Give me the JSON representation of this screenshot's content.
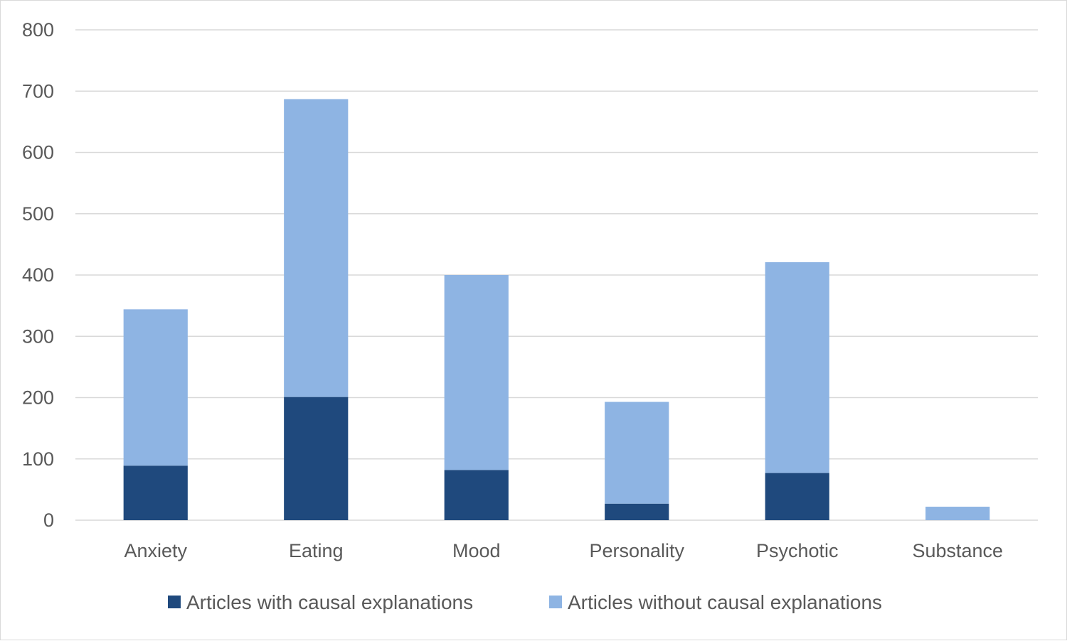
{
  "chart_data": {
    "type": "bar",
    "stacked": true,
    "title": "",
    "xlabel": "",
    "ylabel": "",
    "ylim": [
      0,
      800
    ],
    "yticks": [
      0,
      100,
      200,
      300,
      400,
      500,
      600,
      700,
      800
    ],
    "grid": true,
    "legend_position": "bottom",
    "categories": [
      "Anxiety",
      "Eating",
      "Mood",
      "Personality",
      "Psychotic",
      "Substance"
    ],
    "series": [
      {
        "name": "Articles with causal explanations",
        "color": "#1f497d",
        "values": [
          89,
          201,
          82,
          27,
          77,
          0
        ]
      },
      {
        "name": "Articles without causal explanations",
        "color": "#8eb4e3",
        "values": [
          255,
          486,
          318,
          166,
          344,
          22
        ]
      }
    ]
  }
}
